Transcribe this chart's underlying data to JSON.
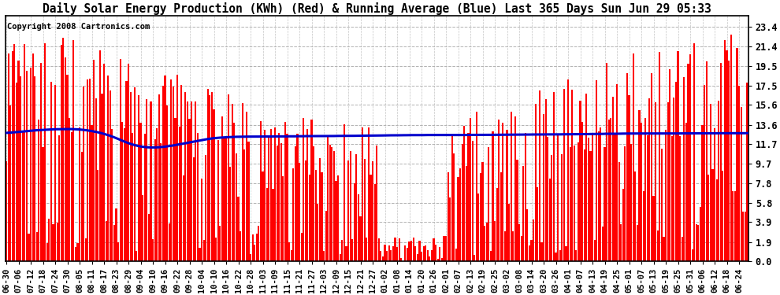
{
  "title": "Daily Solar Energy Production (KWh) (Red) & Running Average (Blue) Last 365 Days Sun Jun 29 05:33",
  "copyright_text": "Copyright 2008 Cartronics.com",
  "yticks": [
    0.0,
    1.9,
    3.9,
    5.8,
    7.8,
    9.7,
    11.7,
    13.6,
    15.6,
    17.5,
    19.5,
    21.4,
    23.4
  ],
  "ylim": [
    0.0,
    24.5
  ],
  "bar_color": "#ff0000",
  "avg_color": "#0000cc",
  "background_color": "#ffffff",
  "grid_color": "#aaaaaa",
  "title_fontsize": 10.5,
  "tick_fontsize": 8.5,
  "copyright_fontsize": 7.5,
  "x_labels": [
    "06-30",
    "07-06",
    "07-12",
    "07-18",
    "07-24",
    "07-30",
    "08-05",
    "08-11",
    "08-17",
    "08-23",
    "08-29",
    "09-04",
    "09-10",
    "09-16",
    "09-22",
    "09-28",
    "10-04",
    "10-10",
    "10-16",
    "10-22",
    "10-28",
    "11-03",
    "11-09",
    "11-15",
    "11-21",
    "11-27",
    "12-03",
    "12-09",
    "12-15",
    "12-21",
    "12-27",
    "01-02",
    "01-08",
    "01-14",
    "01-20",
    "01-26",
    "02-01",
    "02-07",
    "02-13",
    "02-19",
    "02-25",
    "03-02",
    "03-08",
    "03-14",
    "03-20",
    "03-26",
    "04-01",
    "04-07",
    "04-13",
    "04-19",
    "04-25",
    "05-01",
    "05-07",
    "05-13",
    "05-19",
    "05-25",
    "05-31",
    "06-06",
    "06-12",
    "06-18",
    "06-24"
  ],
  "avg_values": [
    12.8,
    12.82,
    12.83,
    12.85,
    12.87,
    12.89,
    12.9,
    12.92,
    12.94,
    12.96,
    12.98,
    13.0,
    13.02,
    13.04,
    13.05,
    13.07,
    13.08,
    13.1,
    13.11,
    13.12,
    13.13,
    13.14,
    13.15,
    13.16,
    13.17,
    13.17,
    13.18,
    13.18,
    13.19,
    13.19,
    13.19,
    13.19,
    13.18,
    13.17,
    13.16,
    13.15,
    13.13,
    13.11,
    13.09,
    13.06,
    13.03,
    13.0,
    12.96,
    12.92,
    12.88,
    12.83,
    12.78,
    12.72,
    12.66,
    12.6,
    12.53,
    12.46,
    12.38,
    12.3,
    12.21,
    12.13,
    12.04,
    11.95,
    11.87,
    11.79,
    11.72,
    11.65,
    11.59,
    11.54,
    11.49,
    11.45,
    11.42,
    11.39,
    11.37,
    11.36,
    11.35,
    11.35,
    11.35,
    11.36,
    11.37,
    11.39,
    11.41,
    11.43,
    11.46,
    11.49,
    11.52,
    11.55,
    11.59,
    11.62,
    11.66,
    11.7,
    11.74,
    11.78,
    11.82,
    11.86,
    11.9,
    11.94,
    11.98,
    12.02,
    12.06,
    12.1,
    12.14,
    12.17,
    12.2,
    12.23,
    12.26,
    12.28,
    12.3,
    12.32,
    12.33,
    12.35,
    12.36,
    12.37,
    12.38,
    12.39,
    12.4,
    12.41,
    12.41,
    12.42,
    12.42,
    12.42,
    12.43,
    12.43,
    12.43,
    12.43,
    12.43,
    12.43,
    12.43,
    12.44,
    12.44,
    12.44,
    12.44,
    12.44,
    12.44,
    12.45,
    12.45,
    12.45,
    12.45,
    12.45,
    12.45,
    12.45,
    12.45,
    12.46,
    12.46,
    12.46,
    12.46,
    12.47,
    12.47,
    12.47,
    12.47,
    12.48,
    12.48,
    12.48,
    12.48,
    12.48,
    12.48,
    12.48,
    12.49,
    12.49,
    12.49,
    12.49,
    12.49,
    12.49,
    12.49,
    12.49,
    12.5,
    12.5,
    12.5,
    12.5,
    12.5,
    12.5,
    12.51,
    12.51,
    12.51,
    12.51,
    12.51,
    12.52,
    12.52,
    12.52,
    12.53,
    12.53,
    12.53,
    12.53,
    12.53,
    12.54,
    12.54,
    12.54,
    12.54,
    12.55,
    12.55,
    12.55,
    12.56,
    12.56,
    12.56,
    12.56,
    12.56,
    12.57,
    12.57,
    12.57,
    12.57,
    12.58,
    12.58,
    12.58,
    12.58,
    12.58,
    12.58,
    12.58,
    12.58,
    12.59,
    12.59,
    12.59,
    12.59,
    12.59,
    12.59,
    12.59,
    12.59,
    12.59,
    12.59,
    12.59,
    12.59,
    12.59,
    12.59,
    12.59,
    12.59,
    12.59,
    12.59,
    12.59,
    12.59,
    12.59,
    12.6,
    12.6,
    12.6,
    12.6,
    12.6,
    12.6,
    12.6,
    12.6,
    12.6,
    12.6,
    12.6,
    12.6,
    12.61,
    12.61,
    12.61,
    12.61,
    12.62,
    12.62,
    12.62,
    12.62,
    12.62,
    12.62,
    12.62,
    12.63,
    12.63,
    12.63,
    12.63,
    12.63,
    12.63,
    12.63,
    12.64,
    12.64,
    12.64,
    12.64,
    12.64,
    12.64,
    12.64,
    12.65,
    12.65,
    12.65,
    12.65,
    12.65,
    12.65,
    12.65,
    12.65,
    12.66,
    12.66,
    12.66,
    12.66,
    12.66,
    12.67,
    12.67,
    12.67,
    12.67,
    12.68,
    12.68,
    12.68,
    12.68,
    12.68,
    12.69,
    12.69,
    12.69,
    12.7,
    12.7,
    12.7,
    12.7,
    12.71,
    12.71,
    12.71,
    12.71,
    12.72,
    12.72,
    12.72,
    12.72,
    12.73,
    12.73,
    12.73,
    12.73,
    12.73,
    12.74,
    12.74,
    12.74,
    12.74,
    12.74,
    12.74,
    12.74,
    12.74,
    12.74,
    12.74,
    12.74,
    12.74,
    12.74,
    12.74,
    12.74,
    12.74,
    12.74,
    12.74,
    12.74,
    12.74,
    12.74,
    12.74,
    12.74,
    12.75,
    12.75,
    12.75,
    12.75,
    12.75,
    12.75,
    12.75,
    12.75,
    12.76,
    12.76,
    12.76,
    12.76,
    12.76,
    12.76,
    12.76,
    12.76,
    12.76,
    12.76,
    12.76,
    12.77,
    12.77,
    12.77,
    12.77,
    12.77,
    12.77,
    12.77,
    12.77,
    12.77,
    12.77,
    12.77,
    12.77,
    12.77,
    12.77,
    12.78
  ]
}
